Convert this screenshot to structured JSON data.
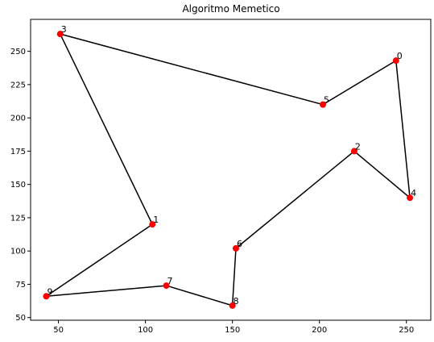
{
  "chart_data": {
    "type": "scatter",
    "title": "Algoritmo Memetico",
    "xlabel": "",
    "ylabel": "",
    "xlim": [
      34,
      264
    ],
    "ylim": [
      48,
      274
    ],
    "xticks": [
      50,
      100,
      150,
      200,
      250
    ],
    "yticks": [
      50,
      75,
      100,
      125,
      150,
      175,
      200,
      225,
      250
    ],
    "grid": false,
    "points": [
      {
        "label": "0",
        "x": 244,
        "y": 243
      },
      {
        "label": "1",
        "x": 104,
        "y": 120
      },
      {
        "label": "2",
        "x": 220,
        "y": 175
      },
      {
        "label": "3",
        "x": 51,
        "y": 263
      },
      {
        "label": "4",
        "x": 252,
        "y": 140
      },
      {
        "label": "5",
        "x": 202,
        "y": 210
      },
      {
        "label": "6",
        "x": 152,
        "y": 102
      },
      {
        "label": "7",
        "x": 112,
        "y": 74
      },
      {
        "label": "8",
        "x": 150,
        "y": 59
      },
      {
        "label": "9",
        "x": 43,
        "y": 66
      }
    ],
    "route": [
      "0",
      "5",
      "3",
      "1",
      "9",
      "7",
      "8",
      "6",
      "2",
      "4",
      "0"
    ],
    "colors": {
      "points": "#ff0000",
      "route": "#000000"
    }
  }
}
